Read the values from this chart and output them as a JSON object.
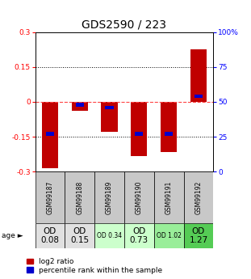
{
  "title": "GDS2590 / 223",
  "samples": [
    "GSM99187",
    "GSM99188",
    "GSM99189",
    "GSM99190",
    "GSM99191",
    "GSM99192"
  ],
  "log2_ratios": [
    -0.285,
    -0.04,
    -0.13,
    -0.235,
    -0.215,
    0.225
  ],
  "percentile_ranks": [
    27,
    48,
    46,
    27,
    27,
    54
  ],
  "ylim": [
    -0.3,
    0.3
  ],
  "yticks_left": [
    -0.3,
    -0.15,
    0,
    0.15,
    0.3
  ],
  "yticks_right": [
    0,
    25,
    50,
    75,
    100
  ],
  "bar_color": "#c00000",
  "pct_color": "#0000cc",
  "zero_line_color": "#ff4444",
  "dotted_line_color": "#000000",
  "bar_width": 0.55,
  "pct_bar_width": 0.28,
  "pct_bar_height": 0.016,
  "age_labels": [
    "OD\n0.08",
    "OD\n0.15",
    "OD 0.34",
    "OD\n0.73",
    "OD 1.02",
    "OD\n1.27"
  ],
  "age_bg_colors": [
    "#e0e0e0",
    "#e0e0e0",
    "#ccffcc",
    "#ccffcc",
    "#99ee99",
    "#55cc55"
  ],
  "sample_bg_color": "#c8c8c8",
  "title_fontsize": 10,
  "tick_fontsize": 6.5,
  "legend_fontsize": 6.5,
  "age_fontsize": 7,
  "age_label_fontsize": 7.5
}
